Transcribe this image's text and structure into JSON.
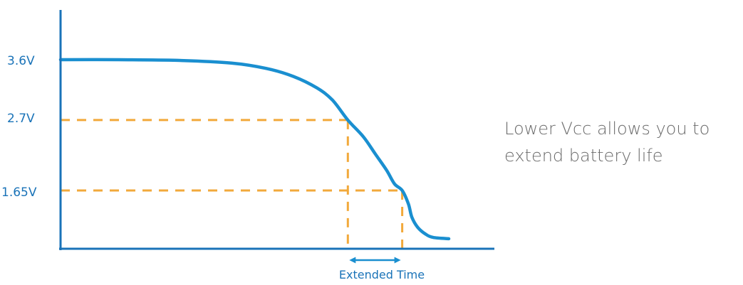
{
  "chart_data": {
    "type": "line",
    "title": "",
    "xlabel": "",
    "ylabel": "",
    "y_tick_labels": [
      "3.6V",
      "2.7V",
      "1.65V"
    ],
    "y_ticks": [
      3.6,
      2.7,
      1.65
    ],
    "ylim": [
      0.9,
      4.4
    ],
    "xlim": [
      0,
      100
    ],
    "grid": false,
    "series": [
      {
        "values_x": [
          0,
          15,
          30,
          44,
          53,
          60,
          66,
          70,
          74,
          78,
          81,
          84,
          86,
          88,
          89.6,
          90.5,
          92,
          94,
          96,
          100
        ],
        "values_y": [
          3.6,
          3.6,
          3.59,
          3.55,
          3.47,
          3.35,
          3.18,
          3.0,
          2.7,
          2.45,
          2.2,
          1.95,
          1.75,
          1.65,
          1.45,
          1.25,
          1.1,
          1.0,
          0.95,
          0.93
        ]
      }
    ],
    "reference_lines": [
      {
        "voltage": 2.7,
        "x": 74
      },
      {
        "voltage": 1.65,
        "x": 88
      }
    ],
    "extended_interval": {
      "from_x": 74,
      "to_x": 88
    },
    "annotation": "Extended Time"
  },
  "side_note": {
    "line1": "Lower Vcc allows you to",
    "line2": "extend battery life"
  },
  "colors": {
    "curve": "#1a8fd0",
    "axis": "#1a73b8",
    "dashed": "#f2a93b",
    "label": "#1a73b8",
    "note": "#6b6b6b"
  }
}
